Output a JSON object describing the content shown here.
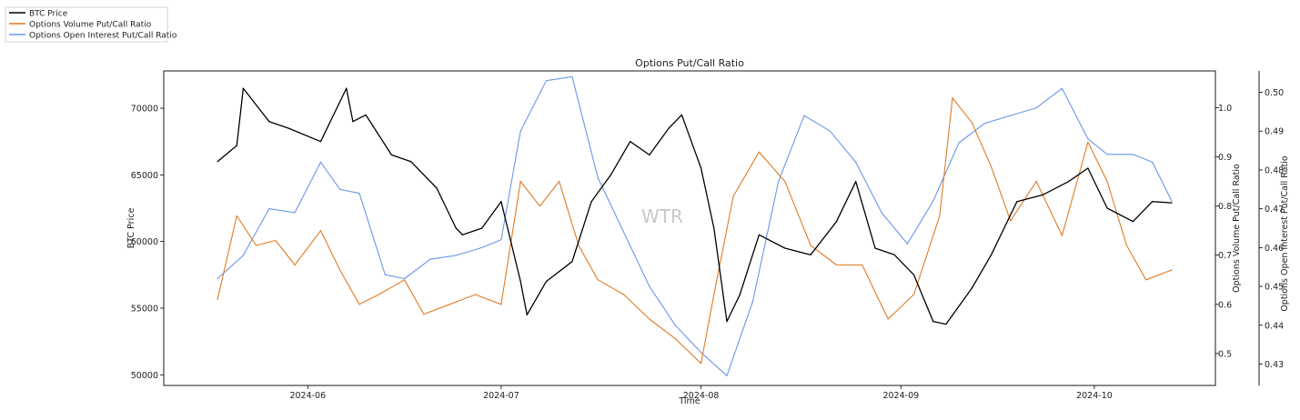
{
  "chart_data": {
    "type": "line",
    "title": "Options Put/Call Ratio",
    "xlabel": "Time",
    "watermark": "WTR",
    "x_ticks": [
      "2024-06",
      "2024-07",
      "2024-08",
      "2024-09",
      "2024-10"
    ],
    "x_range": [
      "2024-05-17",
      "2024-10-13"
    ],
    "axes": {
      "y_left": {
        "label": "BTC Price",
        "ylim": [
          49200,
          72800
        ],
        "ticks": [
          "50000",
          "55000",
          "60000",
          "65000",
          "70000"
        ]
      },
      "y_right1": {
        "label": "Options Volume Put/Call Ratio",
        "ylim": [
          0.435,
          1.075
        ],
        "ticks": [
          "0.5",
          "0.6",
          "0.7",
          "0.8",
          "0.9",
          "1.0"
        ]
      },
      "y_right2": {
        "label": "Options Open Interest Put/Call Ratio",
        "ylim": [
          0.4245,
          0.5055
        ],
        "ticks": [
          "0.43",
          "0.44",
          "0.45",
          "0.46",
          "0.47",
          "0.48",
          "0.49",
          "0.50"
        ]
      }
    },
    "legend_position": "top-left",
    "series": [
      {
        "name": "BTC Price",
        "axis": "y_left",
        "color": "#000000",
        "x": [
          "2024-05-18",
          "2024-05-21",
          "2024-05-22",
          "2024-05-26",
          "2024-05-29",
          "2024-06-03",
          "2024-06-07",
          "2024-06-08",
          "2024-06-10",
          "2024-06-14",
          "2024-06-17",
          "2024-06-21",
          "2024-06-24",
          "2024-06-25",
          "2024-06-28",
          "2024-07-01",
          "2024-07-04",
          "2024-07-05",
          "2024-07-08",
          "2024-07-12",
          "2024-07-15",
          "2024-07-18",
          "2024-07-21",
          "2024-07-24",
          "2024-07-27",
          "2024-07-29",
          "2024-08-01",
          "2024-08-03",
          "2024-08-05",
          "2024-08-07",
          "2024-08-10",
          "2024-08-14",
          "2024-08-18",
          "2024-08-22",
          "2024-08-25",
          "2024-08-28",
          "2024-08-31",
          "2024-09-03",
          "2024-09-06",
          "2024-09-08",
          "2024-09-12",
          "2024-09-15",
          "2024-09-19",
          "2024-09-23",
          "2024-09-27",
          "2024-09-30",
          "2024-10-03",
          "2024-10-07",
          "2024-10-10",
          "2024-10-13"
        ],
        "values": [
          66000,
          67200,
          71500,
          69000,
          68500,
          67500,
          71500,
          69000,
          69500,
          66500,
          66000,
          64000,
          61000,
          60500,
          61000,
          63000,
          57000,
          54500,
          57000,
          58500,
          63000,
          65000,
          67500,
          66500,
          68500,
          69500,
          65500,
          61000,
          54000,
          56000,
          60500,
          59500,
          59000,
          61500,
          64500,
          59500,
          59000,
          57500,
          54000,
          53800,
          56500,
          59000,
          63000,
          63500,
          64500,
          65500,
          62500,
          61500,
          63000,
          62900
        ]
      },
      {
        "name": "Options Volume Put/Call Ratio",
        "axis": "y_right1",
        "color": "#e07b24",
        "x": [
          "2024-05-18",
          "2024-05-21",
          "2024-05-24",
          "2024-05-27",
          "2024-05-30",
          "2024-06-03",
          "2024-06-06",
          "2024-06-09",
          "2024-06-12",
          "2024-06-16",
          "2024-06-19",
          "2024-06-23",
          "2024-06-27",
          "2024-07-01",
          "2024-07-04",
          "2024-07-07",
          "2024-07-10",
          "2024-07-13",
          "2024-07-16",
          "2024-07-20",
          "2024-07-24",
          "2024-07-28",
          "2024-08-01",
          "2024-08-03",
          "2024-08-06",
          "2024-08-10",
          "2024-08-14",
          "2024-08-18",
          "2024-08-22",
          "2024-08-26",
          "2024-08-30",
          "2024-09-03",
          "2024-09-07",
          "2024-09-09",
          "2024-09-12",
          "2024-09-15",
          "2024-09-18",
          "2024-09-22",
          "2024-09-26",
          "2024-09-30",
          "2024-10-03",
          "2024-10-06",
          "2024-10-09",
          "2024-10-13"
        ],
        "values": [
          0.61,
          0.78,
          0.72,
          0.73,
          0.68,
          0.75,
          0.67,
          0.6,
          0.62,
          0.65,
          0.58,
          0.6,
          0.62,
          0.6,
          0.85,
          0.8,
          0.85,
          0.72,
          0.65,
          0.62,
          0.57,
          0.53,
          0.48,
          0.62,
          0.82,
          0.91,
          0.85,
          0.72,
          0.68,
          0.68,
          0.57,
          0.62,
          0.78,
          1.02,
          0.97,
          0.88,
          0.77,
          0.85,
          0.74,
          0.93,
          0.85,
          0.72,
          0.65,
          0.67
        ]
      },
      {
        "name": "Options Open Interest Put/Call Ratio",
        "axis": "y_right2",
        "color": "#6a97e8",
        "x": [
          "2024-05-18",
          "2024-05-22",
          "2024-05-26",
          "2024-05-30",
          "2024-06-03",
          "2024-06-06",
          "2024-06-09",
          "2024-06-13",
          "2024-06-16",
          "2024-06-20",
          "2024-06-24",
          "2024-06-28",
          "2024-07-01",
          "2024-07-04",
          "2024-07-08",
          "2024-07-12",
          "2024-07-16",
          "2024-07-20",
          "2024-07-24",
          "2024-07-28",
          "2024-08-01",
          "2024-08-05",
          "2024-08-09",
          "2024-08-13",
          "2024-08-17",
          "2024-08-21",
          "2024-08-25",
          "2024-08-29",
          "2024-09-02",
          "2024-09-06",
          "2024-09-10",
          "2024-09-14",
          "2024-09-18",
          "2024-09-22",
          "2024-09-26",
          "2024-09-30",
          "2024-10-03",
          "2024-10-07",
          "2024-10-10",
          "2024-10-13"
        ],
        "values": [
          0.452,
          0.458,
          0.47,
          0.469,
          0.482,
          0.475,
          0.474,
          0.453,
          0.452,
          0.457,
          0.458,
          0.46,
          0.462,
          0.49,
          0.503,
          0.504,
          0.478,
          0.464,
          0.45,
          0.44,
          0.433,
          0.427,
          0.446,
          0.477,
          0.494,
          0.49,
          0.482,
          0.469,
          0.461,
          0.472,
          0.487,
          0.492,
          0.494,
          0.496,
          0.501,
          0.488,
          0.484,
          0.484,
          0.482,
          0.472
        ]
      }
    ]
  }
}
